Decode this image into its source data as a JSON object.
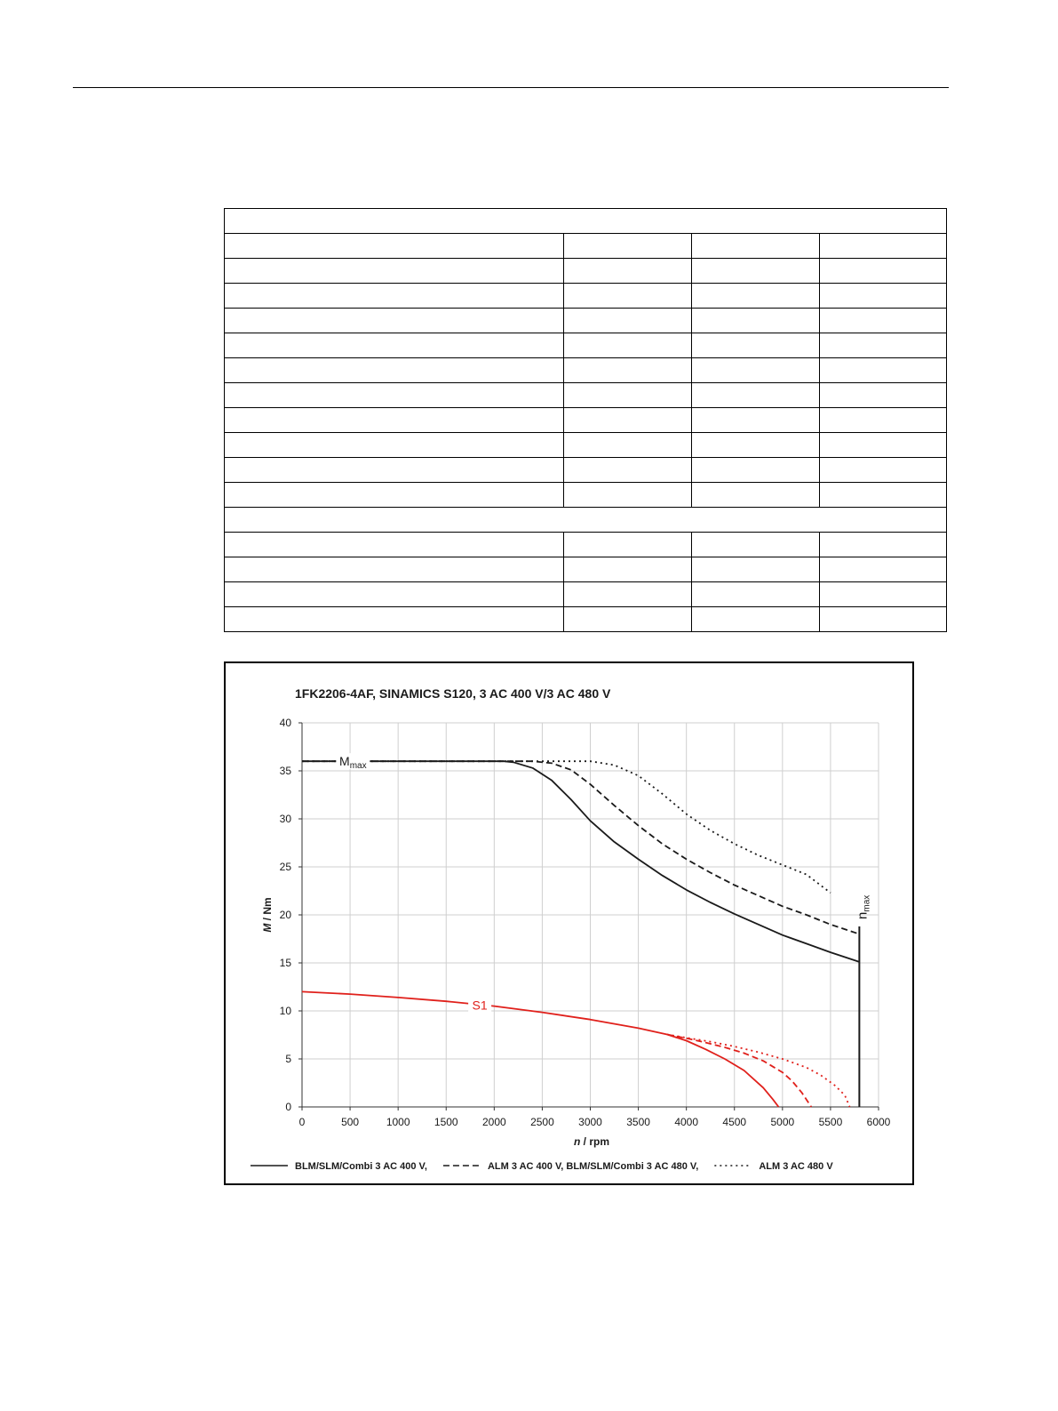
{
  "table": {
    "rows": [
      {
        "span": true,
        "cells": [
          ""
        ]
      },
      {
        "cells": [
          "",
          "",
          "",
          ""
        ]
      },
      {
        "cells": [
          "",
          "",
          "",
          ""
        ]
      },
      {
        "cells": [
          "",
          "",
          "",
          ""
        ]
      },
      {
        "cells": [
          "",
          "",
          "",
          ""
        ]
      },
      {
        "cells": [
          "",
          "",
          "",
          ""
        ]
      },
      {
        "cells": [
          "",
          "",
          "",
          ""
        ]
      },
      {
        "cells": [
          "",
          "",
          "",
          ""
        ]
      },
      {
        "cells": [
          "",
          "",
          "",
          ""
        ]
      },
      {
        "cells": [
          "",
          "",
          "",
          ""
        ]
      },
      {
        "cells": [
          "",
          "",
          "",
          ""
        ]
      },
      {
        "cells": [
          "",
          "",
          "",
          ""
        ]
      },
      {
        "span": true,
        "cells": [
          ""
        ]
      },
      {
        "cells": [
          "",
          "",
          "",
          ""
        ]
      },
      {
        "cells": [
          "",
          "",
          "",
          ""
        ]
      },
      {
        "cells": [
          "",
          "",
          "",
          ""
        ]
      },
      {
        "cells": [
          "",
          "",
          "",
          ""
        ]
      }
    ]
  },
  "chart_data": {
    "type": "line",
    "title": "1FK2206-4AF,  SINAMICS S120,  3 AC 400 V/3 AC 480 V",
    "xlabel_italic": "n",
    "xlabel_rest": " / rpm",
    "ylabel_italic": "M",
    "ylabel_rest": " / Nm",
    "xlim": [
      0,
      6000
    ],
    "ylim": [
      0,
      40
    ],
    "xticks": [
      0,
      500,
      1000,
      1500,
      2000,
      2500,
      3000,
      3500,
      4000,
      4500,
      5000,
      5500,
      6000
    ],
    "yticks": [
      0,
      5,
      10,
      15,
      20,
      25,
      30,
      35,
      40
    ],
    "grid": true,
    "colors": {
      "max_curves": "#1a1a1a",
      "s1_curves": "#e0201b",
      "grid": "#cfcfcf"
    },
    "annotations": [
      {
        "main": "M",
        "sub": "max",
        "x": 530,
        "y": 36,
        "color": "#1a1a1a"
      },
      {
        "main": "S1",
        "sub": "",
        "x": 1850,
        "y": 10.6,
        "color": "#e0201b"
      },
      {
        "main": "n",
        "sub": "max",
        "x": 5830,
        "y": 20.8,
        "color": "#1a1a1a",
        "rotated": true
      }
    ],
    "nmax_line": {
      "x": 5800,
      "y_top": 18.8
    },
    "legend": {
      "position": "bottom",
      "entries": [
        {
          "label": "BLM/SLM/Combi 3 AC 400 V,",
          "style": "solid"
        },
        {
          "label": "ALM 3 AC 400 V, BLM/SLM/Combi 3 AC 480 V,",
          "style": "dashed"
        },
        {
          "label": "ALM 3 AC 480 V",
          "style": "dotted"
        }
      ]
    },
    "series": [
      {
        "group": "max",
        "style": "solid",
        "x": [
          0,
          2100,
          2200,
          2400,
          2600,
          2800,
          3000,
          3250,
          3500,
          3750,
          4000,
          4250,
          4500,
          4750,
          5000,
          5250,
          5500,
          5800
        ],
        "y": [
          36,
          36,
          35.9,
          35.3,
          34,
          32,
          29.8,
          27.6,
          25.8,
          24.1,
          22.6,
          21.3,
          20.1,
          19,
          17.9,
          17,
          16.1,
          15.1
        ]
      },
      {
        "group": "max",
        "style": "dashed",
        "x": [
          0,
          2100,
          2400,
          2600,
          2800,
          3000,
          3250,
          3500,
          3750,
          4000,
          4250,
          4500,
          4750,
          5000,
          5250,
          5500,
          5800
        ],
        "y": [
          36,
          36,
          36,
          35.8,
          35.1,
          33.6,
          31.4,
          29.3,
          27.4,
          25.8,
          24.4,
          23.1,
          22,
          20.9,
          20,
          19,
          18
        ]
      },
      {
        "group": "max",
        "style": "dotted",
        "x": [
          0,
          2100,
          3000,
          3250,
          3500,
          3750,
          4000,
          4250,
          4500,
          4750,
          5000,
          5250,
          5500
        ],
        "y": [
          36,
          36,
          36,
          35.6,
          34.5,
          32.6,
          30.5,
          28.8,
          27.4,
          26.2,
          25.2,
          24.2,
          22.3
        ]
      },
      {
        "group": "s1",
        "style": "solid",
        "x": [
          0,
          500,
          1000,
          1500,
          2000,
          2500,
          3000,
          3500,
          3800,
          4000,
          4200,
          4400,
          4600,
          4800,
          4900,
          4960
        ],
        "y": [
          12,
          11.75,
          11.4,
          11,
          10.5,
          9.85,
          9.1,
          8.2,
          7.55,
          6.9,
          6,
          5,
          3.8,
          2,
          0.8,
          0
        ]
      },
      {
        "group": "s1",
        "style": "dashed",
        "x": [
          3800,
          4000,
          4200,
          4400,
          4600,
          4800,
          5000,
          5100,
          5200,
          5300
        ],
        "y": [
          7.55,
          7.15,
          6.7,
          6.2,
          5.6,
          4.8,
          3.6,
          2.7,
          1.5,
          0
        ]
      },
      {
        "group": "s1",
        "style": "dotted",
        "x": [
          3800,
          4000,
          4250,
          4500,
          4750,
          5000,
          5250,
          5400,
          5550,
          5650,
          5700
        ],
        "y": [
          7.55,
          7.2,
          6.8,
          6.3,
          5.7,
          5,
          4.1,
          3.3,
          2.2,
          1.2,
          0
        ]
      }
    ]
  }
}
